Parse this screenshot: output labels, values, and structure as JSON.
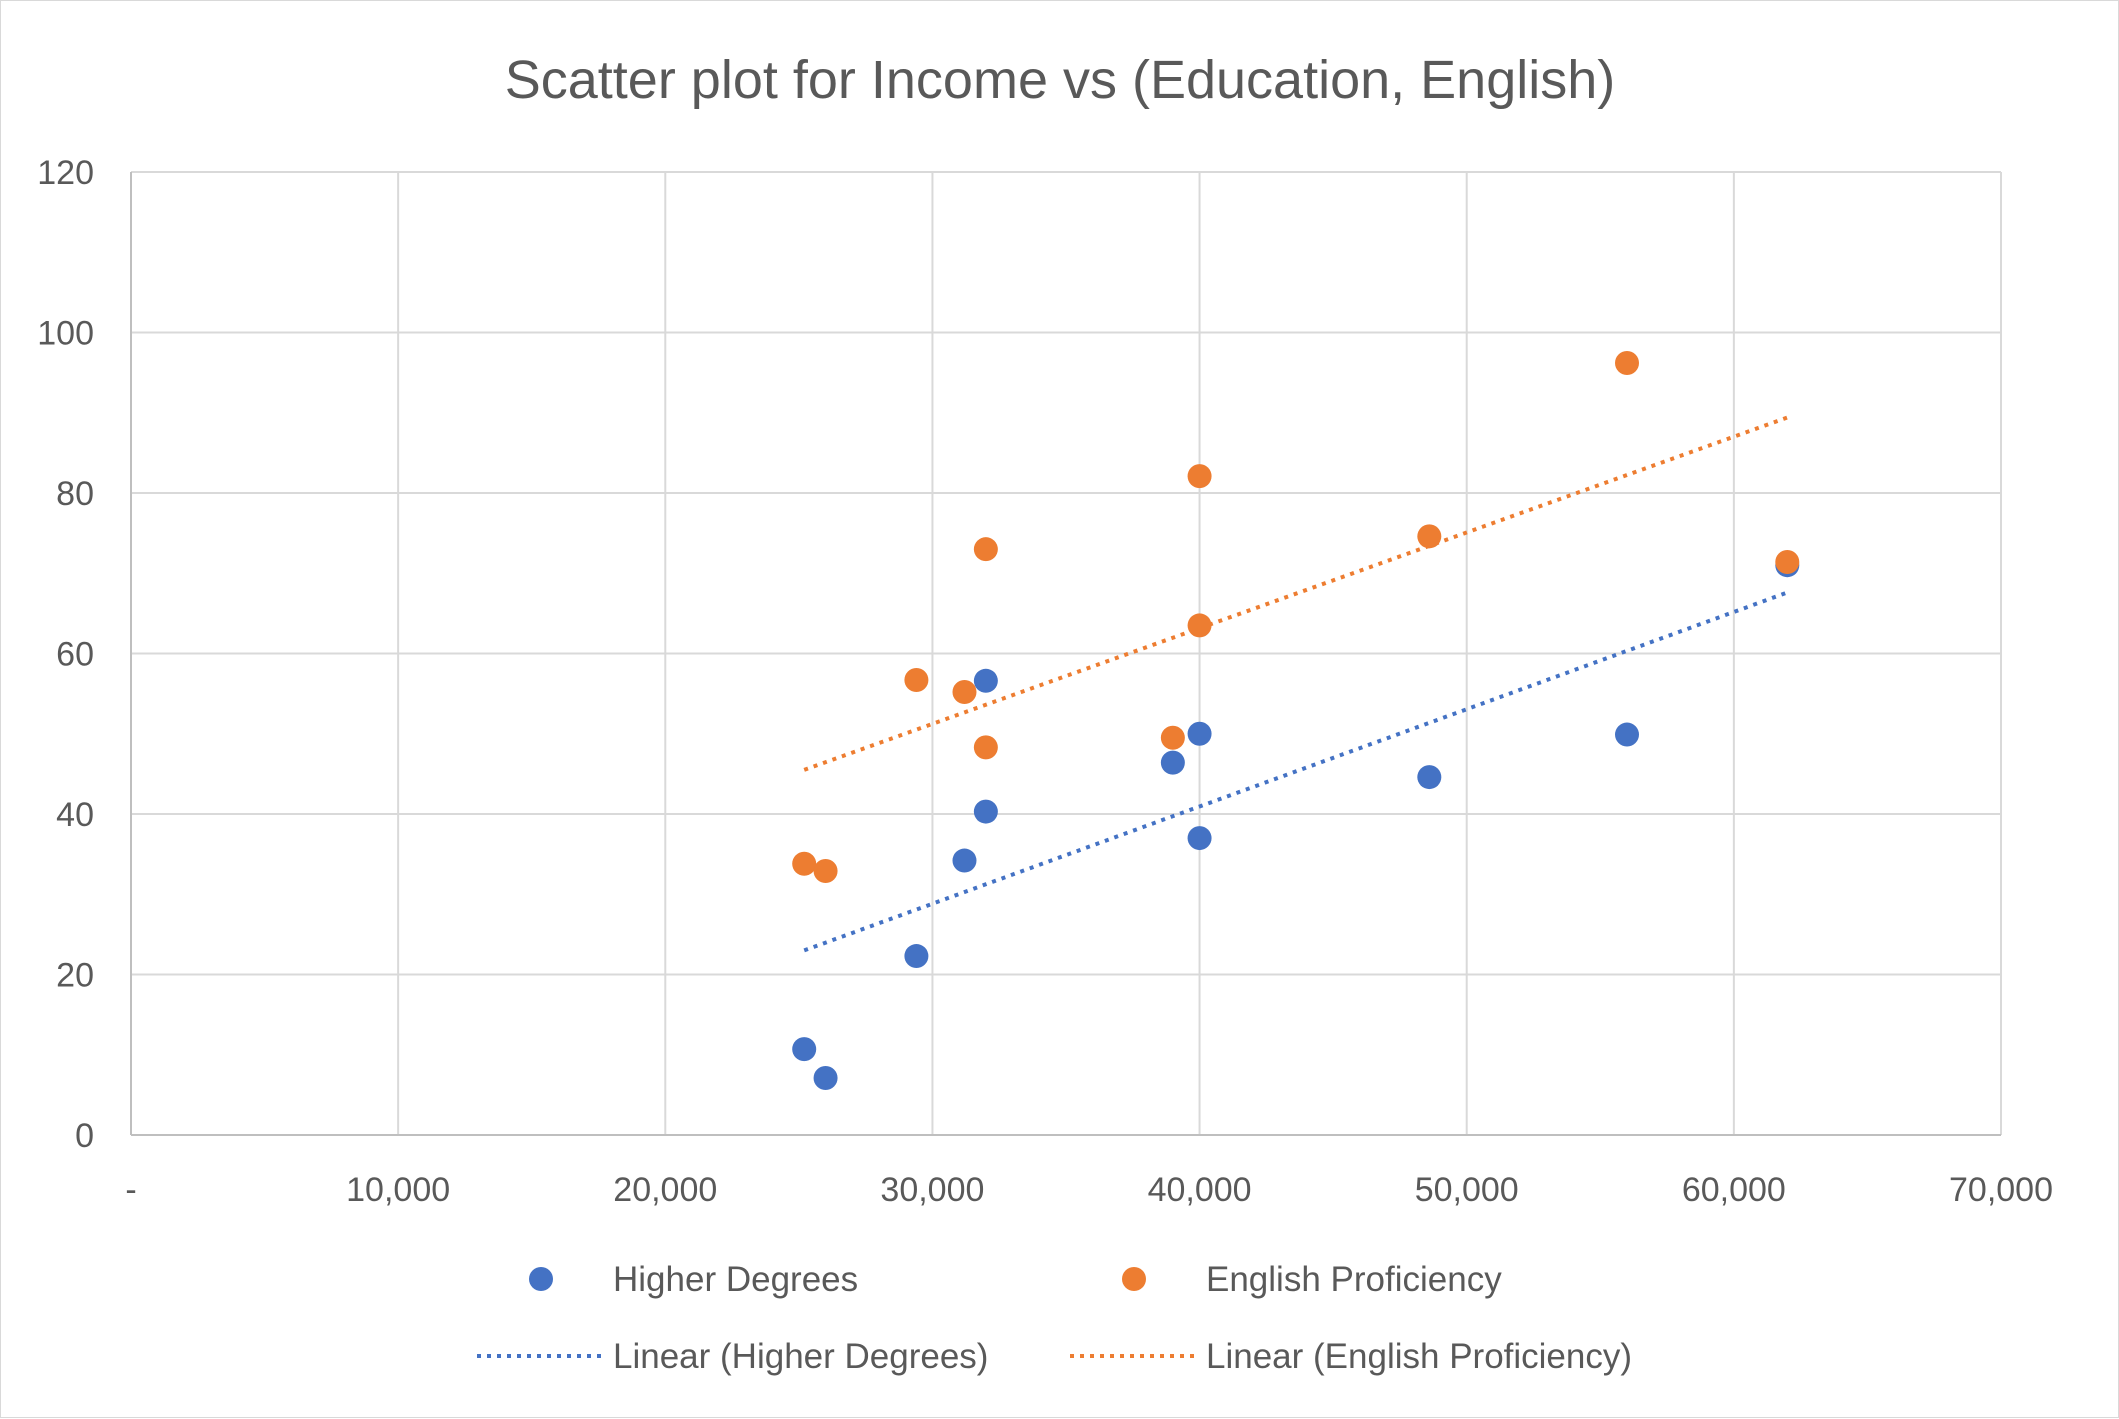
{
  "chart_data": {
    "type": "scatter",
    "title": "Scatter plot for Income vs (Education, English)",
    "xlabel": "",
    "ylabel": "",
    "xlim": [
      0,
      70000
    ],
    "ylim": [
      0,
      120
    ],
    "x_ticks": [
      {
        "value": 0,
        "label": "-"
      },
      {
        "value": 10000,
        "label": "10,000"
      },
      {
        "value": 20000,
        "label": "20,000"
      },
      {
        "value": 30000,
        "label": "30,000"
      },
      {
        "value": 40000,
        "label": "40,000"
      },
      {
        "value": 50000,
        "label": "50,000"
      },
      {
        "value": 60000,
        "label": "60,000"
      },
      {
        "value": 70000,
        "label": "70,000"
      }
    ],
    "y_ticks": [
      {
        "value": 0,
        "label": "0"
      },
      {
        "value": 20,
        "label": "20"
      },
      {
        "value": 40,
        "label": "40"
      },
      {
        "value": 60,
        "label": "60"
      },
      {
        "value": 80,
        "label": "80"
      },
      {
        "value": 100,
        "label": "100"
      },
      {
        "value": 120,
        "label": "120"
      }
    ],
    "grid": true,
    "legend_position": "bottom",
    "series": [
      {
        "name": "Higher Degrees",
        "color": "#4472c4",
        "points": [
          [
            25200,
            10.7
          ],
          [
            26000,
            7.1
          ],
          [
            29400,
            22.3
          ],
          [
            31200,
            34.2
          ],
          [
            32000,
            56.6
          ],
          [
            32000,
            40.3
          ],
          [
            39000,
            46.4
          ],
          [
            40000,
            50.0
          ],
          [
            40000,
            37.0
          ],
          [
            48600,
            44.6
          ],
          [
            56000,
            49.9
          ],
          [
            62000,
            71.0
          ]
        ]
      },
      {
        "name": "English Proficiency",
        "color": "#ed7d31",
        "points": [
          [
            25200,
            33.8
          ],
          [
            26000,
            32.9
          ],
          [
            29400,
            56.7
          ],
          [
            31200,
            55.2
          ],
          [
            32000,
            73.0
          ],
          [
            32000,
            48.3
          ],
          [
            39000,
            49.5
          ],
          [
            40000,
            82.1
          ],
          [
            40000,
            63.5
          ],
          [
            48600,
            74.6
          ],
          [
            56000,
            96.2
          ],
          [
            62000,
            71.4
          ]
        ]
      }
    ],
    "trendlines": [
      {
        "name": "Linear (Higher Degrees)",
        "color": "#4472c4",
        "type": "linear",
        "x_range": [
          25200,
          62000
        ],
        "y_range": [
          23.0,
          67.6
        ]
      },
      {
        "name": "Linear (English Proficiency)",
        "color": "#ed7d31",
        "type": "linear",
        "x_range": [
          25200,
          62000
        ],
        "y_range": [
          45.5,
          89.4
        ]
      }
    ]
  }
}
